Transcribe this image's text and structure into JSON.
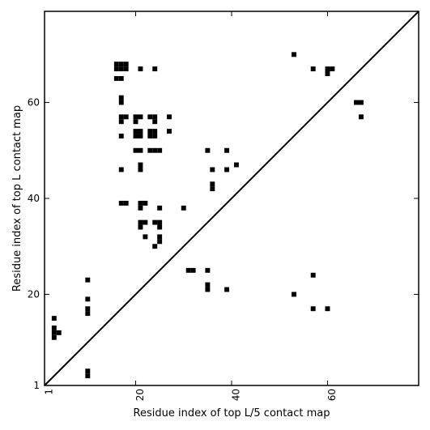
{
  "chart_data": {
    "type": "scatter",
    "title": "",
    "xlabel": "Residue index of top L/5 contact map",
    "ylabel": "Residue index of top L contact map",
    "xlim": [
      1,
      79
    ],
    "ylim": [
      1,
      79
    ],
    "xticks": [
      1,
      20,
      40,
      60
    ],
    "yticks": [
      1,
      20,
      40,
      60
    ],
    "grid": false,
    "diagonal": true,
    "colors": {
      "points": "#000000",
      "diagonal": "#000000",
      "background": "#ffffff"
    },
    "series": [
      {
        "marker": "square",
        "upper_points": [
          [
            16,
            68
          ],
          [
            17,
            68
          ],
          [
            18,
            68
          ],
          [
            16,
            67
          ],
          [
            17,
            67
          ],
          [
            18,
            67
          ],
          [
            21,
            67
          ],
          [
            24,
            67
          ],
          [
            16,
            65
          ],
          [
            17,
            65
          ],
          [
            17,
            61
          ],
          [
            17,
            60
          ],
          [
            17,
            57
          ],
          [
            18,
            57
          ],
          [
            20,
            57
          ],
          [
            21,
            57
          ],
          [
            23,
            57
          ],
          [
            24,
            57
          ],
          [
            27,
            57
          ],
          [
            17,
            56
          ],
          [
            20,
            56
          ],
          [
            24,
            56
          ],
          [
            20,
            54
          ],
          [
            21,
            54
          ],
          [
            23,
            54
          ],
          [
            24,
            54
          ],
          [
            27,
            54
          ],
          [
            20,
            53
          ],
          [
            21,
            53
          ],
          [
            23,
            53
          ],
          [
            24,
            53
          ],
          [
            17,
            53
          ],
          [
            20,
            50
          ],
          [
            21,
            50
          ],
          [
            23,
            50
          ],
          [
            24,
            50
          ],
          [
            25,
            50
          ],
          [
            35,
            50
          ],
          [
            39,
            50
          ],
          [
            21,
            47
          ],
          [
            41,
            47
          ],
          [
            17,
            46
          ],
          [
            21,
            46
          ],
          [
            36,
            46
          ],
          [
            39,
            46
          ],
          [
            36,
            43
          ],
          [
            36,
            42
          ],
          [
            17,
            39
          ],
          [
            18,
            39
          ],
          [
            21,
            39
          ],
          [
            22,
            39
          ],
          [
            21,
            38
          ],
          [
            25,
            38
          ],
          [
            30,
            38
          ],
          [
            21,
            35
          ],
          [
            22,
            35
          ],
          [
            24,
            35
          ],
          [
            25,
            35
          ],
          [
            21,
            34
          ],
          [
            25,
            34
          ],
          [
            22,
            32
          ],
          [
            25,
            32
          ],
          [
            25,
            31
          ],
          [
            24,
            30
          ],
          [
            53,
            70
          ],
          [
            57,
            67
          ],
          [
            60,
            67
          ],
          [
            61,
            67
          ],
          [
            60,
            66
          ],
          [
            66,
            60
          ],
          [
            67,
            60
          ],
          [
            67,
            57
          ]
        ],
        "lower_points": [
          [
            3,
            15
          ],
          [
            3,
            13
          ],
          [
            3,
            12
          ],
          [
            4,
            12
          ],
          [
            3,
            11
          ],
          [
            10,
            23
          ],
          [
            10,
            19
          ],
          [
            10,
            17
          ],
          [
            10,
            16
          ],
          [
            10,
            4
          ],
          [
            10,
            3
          ],
          [
            31,
            25
          ],
          [
            32,
            25
          ],
          [
            35,
            25
          ],
          [
            35,
            22
          ],
          [
            35,
            21
          ],
          [
            39,
            21
          ],
          [
            53,
            20
          ],
          [
            57,
            24
          ],
          [
            57,
            17
          ],
          [
            60,
            17
          ]
        ]
      }
    ]
  }
}
